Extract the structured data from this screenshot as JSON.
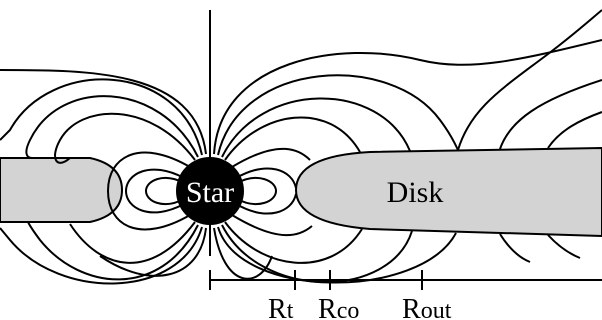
{
  "labels": {
    "star": "Star",
    "disk": "Disk",
    "rt_main": "R",
    "rt_sub": "t",
    "rco_main": "R",
    "rco_sub": "co",
    "rout_main": "R",
    "rout_sub": "out"
  },
  "colors": {
    "disk_fill": "#d3d3d3",
    "star_fill": "#000000",
    "star_text": "#ffffff",
    "line": "#000000"
  }
}
